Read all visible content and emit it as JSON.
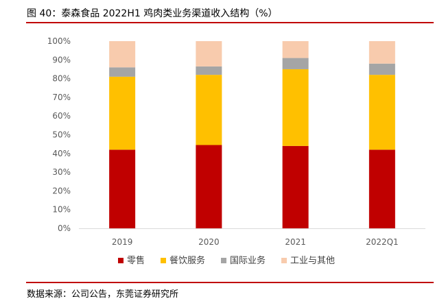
{
  "figure": {
    "title": "图 40：泰森食品 2022H1 鸡肉类业务渠道收入结构（%）",
    "source": "数据来源：公司公告，东莞证券研究所"
  },
  "chart_data": {
    "type": "bar",
    "stacked": true,
    "percent": true,
    "categories": [
      "2019",
      "2020",
      "2021",
      "2022Q1"
    ],
    "series": [
      {
        "name": "零售",
        "color": "#c00000",
        "values": [
          42,
          44.5,
          44,
          42
        ]
      },
      {
        "name": "餐饮服务",
        "color": "#ffc000",
        "values": [
          39,
          37.5,
          41,
          40
        ]
      },
      {
        "name": "国际业务",
        "color": "#a5a5a5",
        "values": [
          5,
          4.5,
          6,
          6
        ]
      },
      {
        "name": "工业与其他",
        "color": "#f8cbad",
        "values": [
          14,
          13.5,
          9,
          12
        ]
      }
    ],
    "y_ticks": [
      "0%",
      "10%",
      "20%",
      "30%",
      "40%",
      "50%",
      "60%",
      "70%",
      "80%",
      "90%",
      "100%"
    ],
    "ylim": [
      0,
      100
    ],
    "grid": false,
    "legend_position": "bottom"
  }
}
